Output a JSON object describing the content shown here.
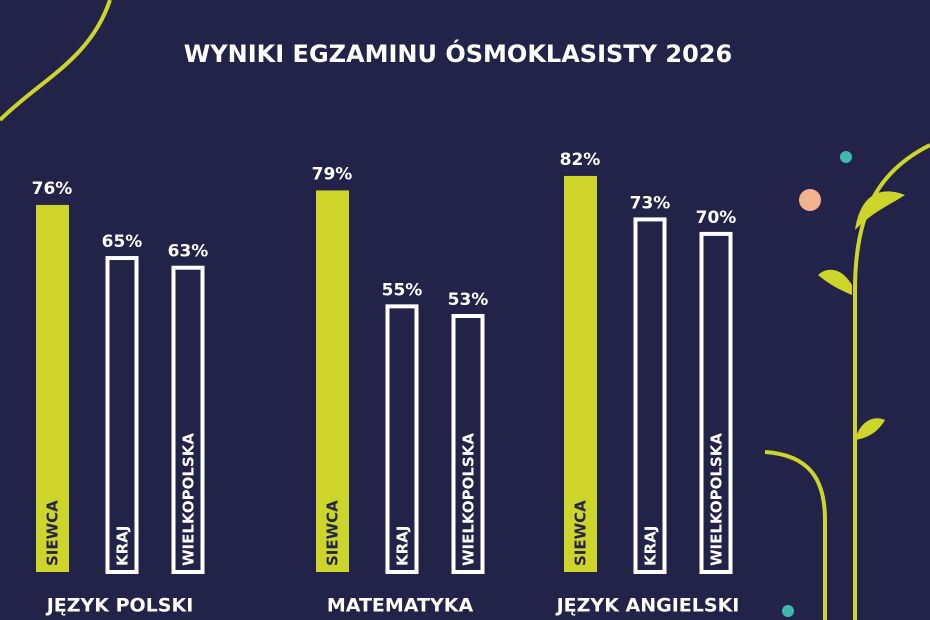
{
  "chart_data": {
    "type": "bar",
    "title": "WYNIKI EGZAMINU ÓSMOKLASISTY 2026",
    "categories": [
      "JĘZYK POLSKI",
      "MATEMATYKA",
      "JĘZYK ANGIELSKI"
    ],
    "series": [
      {
        "name": "SIEWCA",
        "color": "#cdd52a",
        "values": [
          76,
          79,
          82
        ],
        "value_labels": [
          "76%",
          "79%",
          "82%"
        ]
      },
      {
        "name": "KRAJ",
        "color": "#ffffff",
        "values": [
          65,
          55,
          73
        ],
        "value_labels": [
          "65%",
          "55%",
          "73%"
        ]
      },
      {
        "name": "WIELKOPOLSKA",
        "color": "#ffffff",
        "values": [
          63,
          53,
          70
        ],
        "value_labels": [
          "63%",
          "53%",
          "70%"
        ]
      }
    ]
  }
}
